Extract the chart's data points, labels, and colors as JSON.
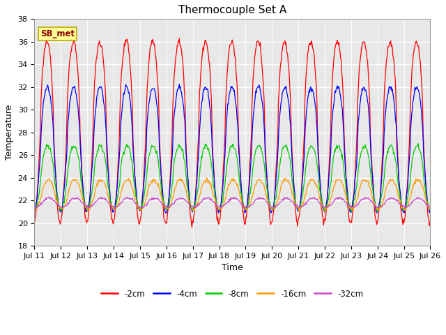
{
  "title": "Thermocouple Set A",
  "xlabel": "Time",
  "ylabel": "Temperature",
  "ylim": [
    18,
    38
  ],
  "colors": {
    "-2cm": "#ff0000",
    "-4cm": "#0000ff",
    "-8cm": "#00cc00",
    "-16cm": "#ff9900",
    "-32cm": "#cc44cc"
  },
  "annotation": "SB_met",
  "annotation_fg": "#8b0000",
  "annotation_bg": "#ffff99",
  "annotation_border": "#bbaa00",
  "plot_bg_color": "#e8e8e8",
  "fig_bg_color": "#ffffff",
  "grid_color": "#ffffff",
  "tick_labels": [
    "Jul 11",
    "Jul 12",
    "Jul 13",
    "Jul 14",
    "Jul 15",
    "Jul 16",
    "Jul 17",
    "Jul 18",
    "Jul 19",
    "Jul 20",
    "Jul 21",
    "Jul 22",
    "Jul 23",
    "Jul 24",
    "Jul 25",
    "Jul 26"
  ],
  "title_fontsize": 11,
  "label_fontsize": 9,
  "tick_fontsize": 8
}
